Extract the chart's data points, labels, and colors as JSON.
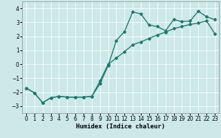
{
  "xlabel": "Humidex (Indice chaleur)",
  "xlim": [
    -0.5,
    23.5
  ],
  "ylim": [
    -3.5,
    4.5
  ],
  "yticks": [
    -3,
    -2,
    -1,
    0,
    1,
    2,
    3,
    4
  ],
  "xticks": [
    0,
    1,
    2,
    3,
    4,
    5,
    6,
    7,
    8,
    9,
    10,
    11,
    12,
    13,
    14,
    15,
    16,
    17,
    18,
    19,
    20,
    21,
    22,
    23
  ],
  "line_color": "#1e7a6e",
  "bg_color": "#cce8e8",
  "grid_color": "#ffffff",
  "curve1_x": [
    0,
    1,
    2,
    3,
    4,
    5,
    6,
    7,
    8,
    9,
    10,
    11,
    12,
    13,
    14,
    15,
    16,
    17,
    18,
    19,
    20,
    21,
    22,
    23
  ],
  "curve1_y": [
    -1.7,
    -2.05,
    -2.75,
    -2.4,
    -2.3,
    -2.35,
    -2.35,
    -2.35,
    -2.3,
    -1.4,
    -0.1,
    1.7,
    2.35,
    3.75,
    3.6,
    2.8,
    2.7,
    2.4,
    3.2,
    3.05,
    3.1,
    3.8,
    3.4,
    3.2
  ],
  "curve2_x": [
    0,
    1,
    2,
    3,
    4,
    5,
    6,
    7,
    8,
    9,
    10,
    11,
    12,
    13,
    14,
    15,
    16,
    17,
    18,
    19,
    20,
    21,
    22,
    23
  ],
  "curve2_y": [
    -1.7,
    -2.05,
    -2.75,
    -2.4,
    -2.3,
    -2.35,
    -2.35,
    -2.35,
    -2.3,
    -1.2,
    0.0,
    0.45,
    0.9,
    1.4,
    1.6,
    1.85,
    2.1,
    2.3,
    2.55,
    2.7,
    2.85,
    2.95,
    3.1,
    2.2
  ],
  "marker": "D",
  "markersize": 2.0,
  "linewidth": 1.0,
  "tick_fontsize": 5.5,
  "xlabel_fontsize": 6.5
}
